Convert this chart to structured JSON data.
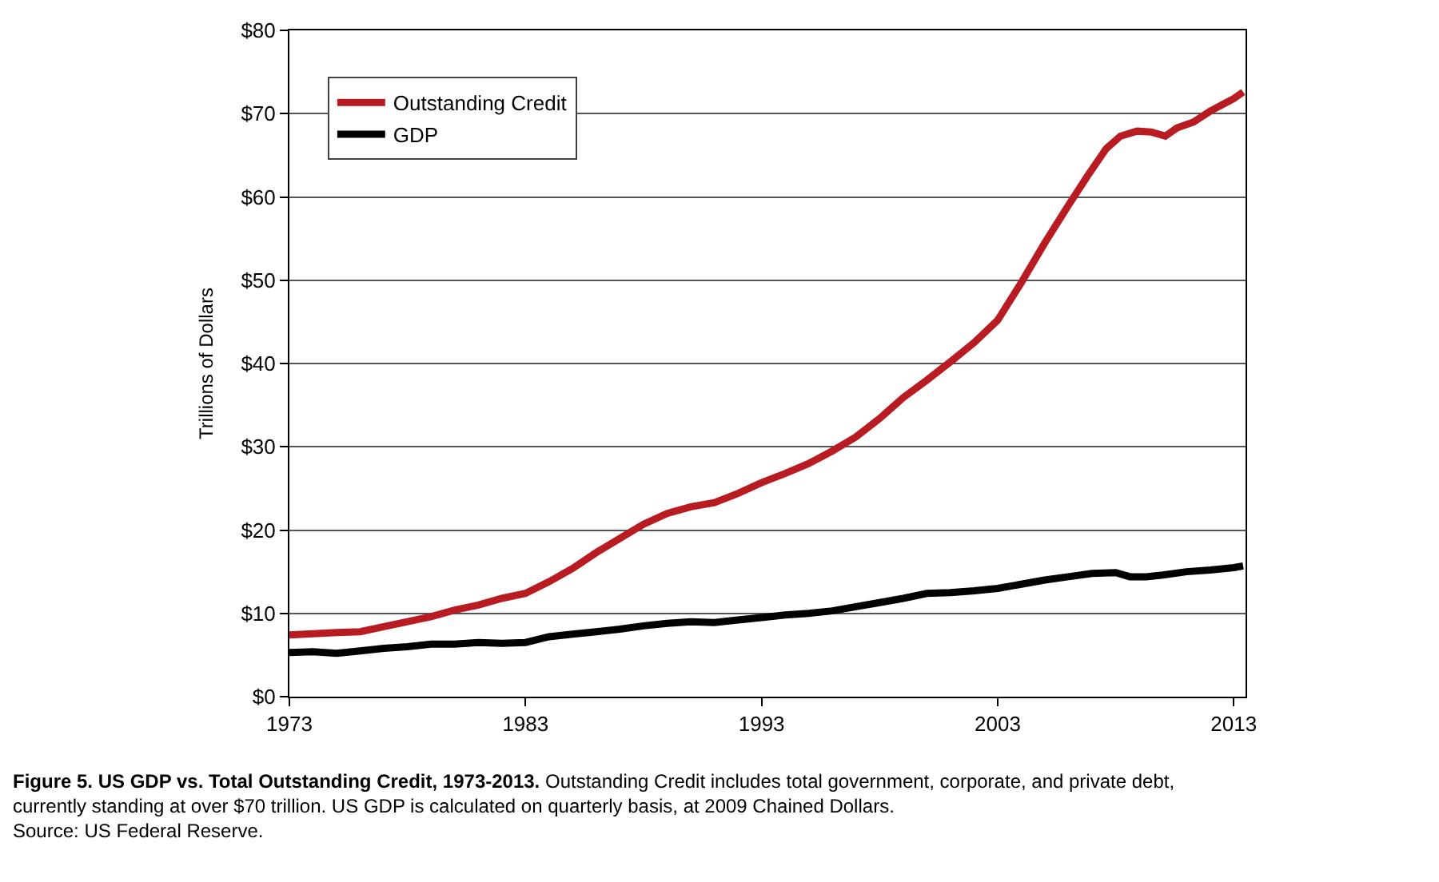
{
  "chart_data": {
    "type": "line",
    "title": "Figure 5. US GDP vs. Total Outstanding Credit, 1973-2013.",
    "ylabel": "Trillions of Dollars",
    "annotations": [
      "Outstanding Credit includes total government, corporate, and private debt, currently standing at over $70 trillion. US GDP is calculated on quarterly basis, at 2009 Chained Dollars.",
      "Source: US Federal Reserve."
    ],
    "xlim": [
      1973,
      2013.5
    ],
    "xticks": [
      1973,
      1983,
      1993,
      2003,
      2013
    ],
    "ylim": [
      0,
      80
    ],
    "yticks": [
      {
        "value": 0,
        "label": "$0"
      },
      {
        "value": 10,
        "label": "$10"
      },
      {
        "value": 20,
        "label": "$20"
      },
      {
        "value": 30,
        "label": "$30"
      },
      {
        "value": 40,
        "label": "$40"
      },
      {
        "value": 50,
        "label": "$50"
      },
      {
        "value": 60,
        "label": "$60"
      },
      {
        "value": 70,
        "label": "$70"
      },
      {
        "value": 80,
        "label": "$80"
      }
    ],
    "grid": "y",
    "legend": "top left",
    "marker": "none",
    "line_style": "solid",
    "series": [
      {
        "name": "Outstanding Credit",
        "color": "#b81c22",
        "x": [
          1973,
          1975,
          1976,
          1977,
          1978,
          1979,
          1980,
          1981,
          1982,
          1983,
          1984,
          1985,
          1986,
          1987,
          1988,
          1989,
          1990,
          1991,
          1992,
          1993,
          1994,
          1995,
          1996,
          1997,
          1998,
          1999,
          2000,
          2001,
          2002,
          2003,
          2004,
          2005,
          2006,
          2006.8,
          2007.6,
          2008.2,
          2008.9,
          2009.5,
          2010.1,
          2010.6,
          2011.3,
          2012,
          2013,
          2013.4
        ],
        "values": [
          7.4,
          7.7,
          7.8,
          8.4,
          9.0,
          9.6,
          10.4,
          11.0,
          11.8,
          12.4,
          13.8,
          15.4,
          17.3,
          19.0,
          20.7,
          22.0,
          22.8,
          23.3,
          24.4,
          25.7,
          26.8,
          28.0,
          29.5,
          31.2,
          33.4,
          35.9,
          38.0,
          40.2,
          42.5,
          45.2,
          49.7,
          54.5,
          59.0,
          62.5,
          65.8,
          67.3,
          67.9,
          67.8,
          67.3,
          68.3,
          69.0,
          70.3,
          71.8,
          72.6
        ]
      },
      {
        "name": "GDP",
        "color": "#000000",
        "x": [
          1973,
          1974,
          1975,
          1976,
          1977,
          1978,
          1979,
          1980,
          1981,
          1982,
          1983,
          1984,
          1985,
          1986,
          1987,
          1988,
          1989,
          1990,
          1991,
          1992,
          1993,
          1994,
          1995,
          1996,
          1997,
          1998,
          1999,
          2000,
          2001,
          2002,
          2003,
          2004,
          2005,
          2006,
          2007,
          2008,
          2008.6,
          2009.3,
          2010,
          2011,
          2012,
          2013,
          2013.4
        ],
        "values": [
          5.3,
          5.4,
          5.2,
          5.5,
          5.8,
          6.0,
          6.3,
          6.3,
          6.5,
          6.4,
          6.5,
          7.2,
          7.5,
          7.8,
          8.1,
          8.5,
          8.8,
          9.0,
          8.9,
          9.2,
          9.5,
          9.8,
          10.0,
          10.3,
          10.8,
          11.3,
          11.8,
          12.4,
          12.5,
          12.7,
          13.0,
          13.5,
          14.0,
          14.4,
          14.8,
          14.9,
          14.4,
          14.4,
          14.6,
          15.0,
          15.2,
          15.5,
          15.7
        ]
      }
    ]
  }
}
